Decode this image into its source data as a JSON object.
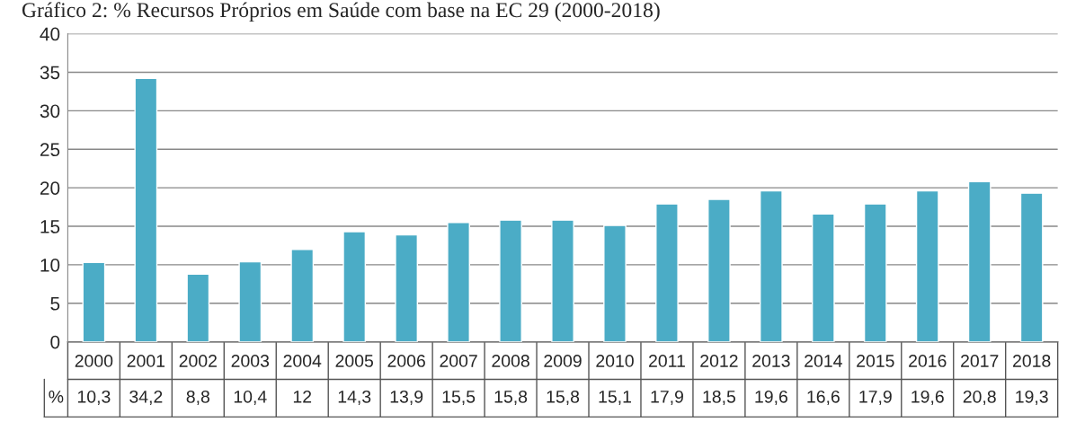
{
  "chart_data": {
    "type": "bar",
    "title": "Gráfico 2: % Recursos Próprios em Saúde com base na EC 29 (2000-2018)",
    "categories": [
      "2000",
      "2001",
      "2002",
      "2003",
      "2004",
      "2005",
      "2006",
      "2007",
      "2008",
      "2009",
      "2010",
      "2011",
      "2012",
      "2013",
      "2014",
      "2015",
      "2016",
      "2017",
      "2018"
    ],
    "series": [
      {
        "name": "%",
        "color": "#4bacc6",
        "values": [
          10.3,
          34.2,
          8.8,
          10.4,
          12,
          14.3,
          13.9,
          15.5,
          15.8,
          15.8,
          15.1,
          17.9,
          18.5,
          19.6,
          16.6,
          17.9,
          19.6,
          20.8,
          19.3
        ],
        "value_labels": [
          "10,3",
          "34,2",
          "8,8",
          "10,4",
          "12",
          "14,3",
          "13,9",
          "15,5",
          "15,8",
          "15,8",
          "15,1",
          "17,9",
          "18,5",
          "19,6",
          "16,6",
          "17,9",
          "19,6",
          "20,8",
          "19,3"
        ]
      }
    ],
    "ylim": [
      0,
      40
    ],
    "yticks": [
      0,
      5,
      10,
      15,
      20,
      25,
      30,
      35,
      40
    ],
    "grid": "y",
    "legend": false
  }
}
